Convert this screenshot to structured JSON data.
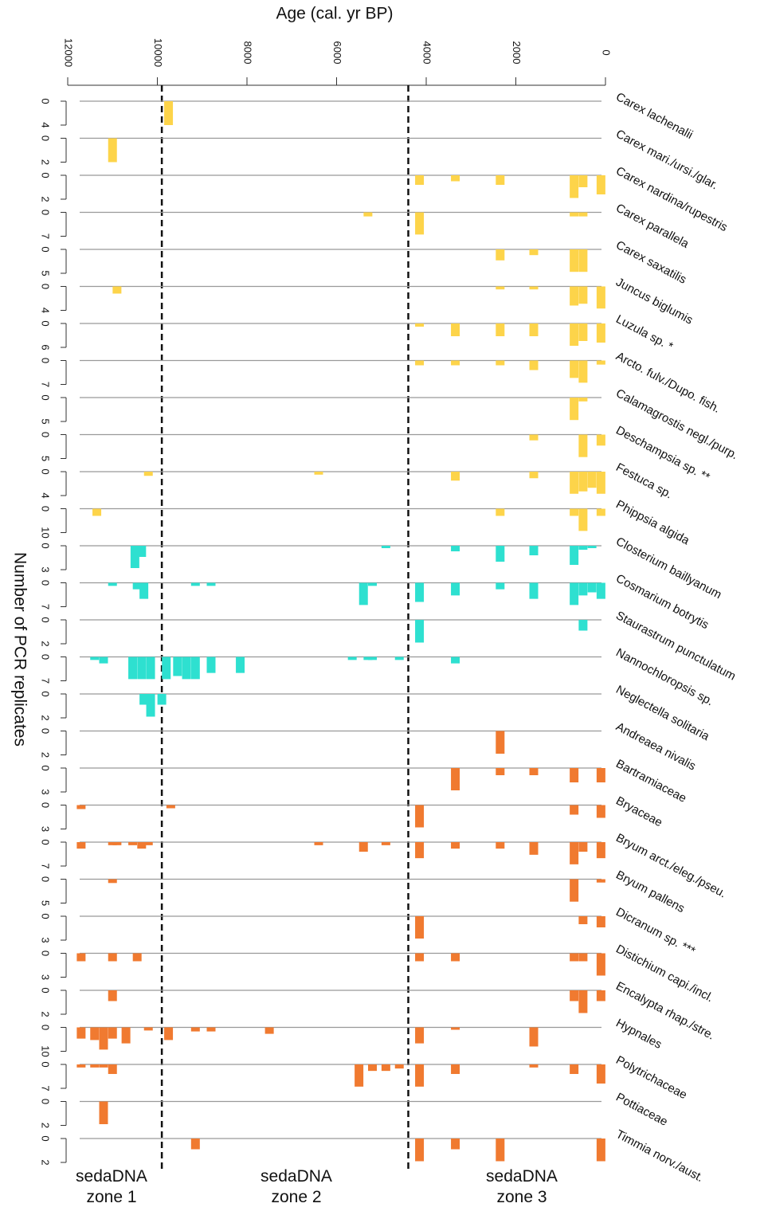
{
  "chart_data": {
    "type": "stratigraphic-bar",
    "xlabel": "Age (cal. yr BP)",
    "ylabel": "Number of PCR replicates",
    "xlim": [
      12000,
      0
    ],
    "xticks": [
      12000,
      10000,
      8000,
      6000,
      4000,
      2000,
      0
    ],
    "zone_boundaries": [
      9900,
      4400
    ],
    "zones": [
      "sedaDNA zone 1",
      "sedaDNA zone 2",
      "sedaDNA zone 3"
    ],
    "grid": true,
    "series": [
      {
        "name": "Carex lachenalii",
        "color": "#fdd44a",
        "yticks": [
          0,
          4
        ],
        "x": [
          9750
        ],
        "values": [
          4
        ]
      },
      {
        "name": "Carex mari./ursi./glar.",
        "color": "#fdd44a",
        "yticks": [
          0,
          2
        ],
        "x": [
          11000
        ],
        "values": [
          2
        ]
      },
      {
        "name": "Carex nardina/rupestris",
        "color": "#fdd44a",
        "yticks": [
          0,
          2
        ],
        "x": [
          4150,
          3350,
          2350,
          700,
          500,
          100
        ],
        "values": [
          0.8,
          0.5,
          0.8,
          1.9,
          1,
          1.6
        ]
      },
      {
        "name": "Carex parallela",
        "color": "#fdd44a",
        "yticks": [
          0,
          7
        ],
        "x": [
          5300,
          4150,
          700,
          500
        ],
        "values": [
          1.2,
          6.5,
          1.2,
          1.2
        ]
      },
      {
        "name": "Carex saxatilis",
        "color": "#fdd44a",
        "yticks": [
          0,
          5
        ],
        "x": [
          2350,
          1600,
          700,
          500
        ],
        "values": [
          2.3,
          1.2,
          4.7,
          4.7
        ]
      },
      {
        "name": "Juncus biglumis",
        "color": "#fdd44a",
        "yticks": [
          0,
          4
        ],
        "x": [
          10900,
          2350,
          1600,
          700,
          500,
          100
        ],
        "values": [
          1.2,
          0.5,
          0.5,
          3.2,
          2.9,
          3.7
        ]
      },
      {
        "name": "Luzula sp. *",
        "color": "#fdd44a",
        "yticks": [
          0,
          6
        ],
        "x": [
          4150,
          3350,
          2350,
          1600,
          700,
          500,
          100
        ],
        "values": [
          0.8,
          3.2,
          3.2,
          3.2,
          5.6,
          4.4,
          4.8
        ]
      },
      {
        "name": "Arcto. fulv./Dupo. fish.",
        "color": "#fdd44a",
        "yticks": [
          0,
          7
        ],
        "x": [
          4150,
          3350,
          2350,
          1600,
          700,
          500,
          100
        ],
        "values": [
          1.4,
          1.4,
          1.4,
          2.8,
          5.1,
          6.5,
          1.2
        ]
      },
      {
        "name": "Calamagrostis negl./purp.",
        "color": "#fdd44a",
        "yticks": [
          0,
          5
        ],
        "x": [
          700,
          500
        ],
        "values": [
          4.7,
          0.8
        ]
      },
      {
        "name": "Deschampsia sp. **",
        "color": "#fdd44a",
        "yticks": [
          0,
          5
        ],
        "x": [
          1600,
          500,
          100
        ],
        "values": [
          1.2,
          4.7,
          2.3
        ]
      },
      {
        "name": "Festuca sp.",
        "color": "#fdd44a",
        "yticks": [
          0,
          4
        ],
        "x": [
          10200,
          6400,
          3350,
          1600,
          700,
          500,
          300,
          100
        ],
        "values": [
          0.7,
          0.5,
          1.5,
          1.1,
          3.7,
          3.3,
          2.7,
          3.7
        ]
      },
      {
        "name": "Phippsia algida",
        "color": "#fdd44a",
        "yticks": [
          0,
          10
        ],
        "x": [
          11350,
          2350,
          700,
          500,
          100
        ],
        "values": [
          3,
          3,
          3,
          9.3,
          3
        ]
      },
      {
        "name": "Closterium baillyanum",
        "color": "#2ee0d0",
        "yticks": [
          0,
          3
        ],
        "x": [
          10500,
          10350,
          4900,
          3350,
          2350,
          1600,
          700,
          500,
          300
        ],
        "values": [
          2.8,
          1.4,
          0.3,
          0.7,
          2,
          1.2,
          2.4,
          0.5,
          0.3
        ]
      },
      {
        "name": "Cosmarium botrytis",
        "color": "#2ee0d0",
        "yticks": [
          0,
          7
        ],
        "x": [
          11000,
          10450,
          10300,
          9150,
          8800,
          5400,
          5200,
          4150,
          3350,
          2350,
          1600,
          700,
          500,
          300,
          100
        ],
        "values": [
          0.9,
          1.9,
          4.7,
          0.9,
          0.9,
          6.5,
          0.9,
          5.6,
          3.7,
          1.9,
          4.7,
          6.5,
          3.7,
          2.8,
          4.7
        ]
      },
      {
        "name": "Staurastrum punctulatum",
        "color": "#2ee0d0",
        "yticks": [
          0,
          2
        ],
        "x": [
          4150,
          500
        ],
        "values": [
          1.9,
          0.9
        ]
      },
      {
        "name": "Nannochloropsis sp.",
        "color": "#2ee0d0",
        "yticks": [
          0,
          7
        ],
        "x": [
          11400,
          11200,
          10550,
          10350,
          10150,
          9800,
          9550,
          9350,
          9150,
          8800,
          8150,
          5650,
          5300,
          5200,
          4600,
          3350
        ],
        "values": [
          0.9,
          1.9,
          6.5,
          6.5,
          6.5,
          6.5,
          5.6,
          6.5,
          6.5,
          4.7,
          4.7,
          0.9,
          0.9,
          0.9,
          0.9,
          1.9
        ]
      },
      {
        "name": "Neglectella solitaria",
        "color": "#2ee0d0",
        "yticks": [
          0,
          2
        ],
        "x": [
          10300,
          10150,
          9900
        ],
        "values": [
          0.9,
          1.9,
          0.9
        ]
      },
      {
        "name": "Andreaea nivalis",
        "color": "#f07a30",
        "yticks": [
          0,
          2
        ],
        "x": [
          2350
        ],
        "values": [
          1.9
        ]
      },
      {
        "name": "Bartramiaceae",
        "color": "#f07a30",
        "yticks": [
          0,
          3
        ],
        "x": [
          3350,
          2350,
          1600,
          700,
          100
        ],
        "values": [
          2.8,
          0.9,
          0.9,
          1.8,
          1.8
        ]
      },
      {
        "name": "Bryaceae",
        "color": "#f07a30",
        "yticks": [
          0,
          3
        ],
        "x": [
          11700,
          9700,
          4150,
          700,
          100
        ],
        "values": [
          0.5,
          0.4,
          2.8,
          1.2,
          1.6
        ]
      },
      {
        "name": "Bryum arct./eleg./pseu.",
        "color": "#f07a30",
        "yticks": [
          0,
          7
        ],
        "x": [
          11700,
          11000,
          10900,
          10550,
          10350,
          10200,
          6400,
          5400,
          4900,
          4150,
          3350,
          2350,
          1600,
          700,
          500,
          100
        ],
        "values": [
          1.9,
          0.9,
          0.9,
          0.9,
          1.9,
          0.9,
          0.9,
          2.8,
          0.9,
          4.7,
          1.9,
          1.9,
          3.7,
          6.5,
          2.8,
          4.7
        ]
      },
      {
        "name": "Bryum pallens",
        "color": "#f07a30",
        "yticks": [
          0,
          5
        ],
        "x": [
          11000,
          700,
          100
        ],
        "values": [
          0.8,
          4.7,
          0.7
        ]
      },
      {
        "name": "Dicranum sp. ***",
        "color": "#f07a30",
        "yticks": [
          0,
          3
        ],
        "x": [
          4150,
          500,
          100
        ],
        "values": [
          2.8,
          1,
          1.4
        ]
      },
      {
        "name": "Distichium capi./incl.",
        "color": "#f07a30",
        "yticks": [
          0,
          3
        ],
        "x": [
          11700,
          11000,
          10450,
          4150,
          3350,
          700,
          500,
          100
        ],
        "values": [
          1,
          1,
          1,
          1,
          1,
          1,
          1,
          2.8
        ]
      },
      {
        "name": "Encalypta rhap./stre.",
        "color": "#f07a30",
        "yticks": [
          0,
          2
        ],
        "x": [
          11000,
          700,
          500,
          100
        ],
        "values": [
          0.9,
          0.9,
          1.9,
          0.9
        ]
      },
      {
        "name": "Hypnales",
        "color": "#f07a30",
        "yticks": [
          0,
          10
        ],
        "x": [
          11700,
          11400,
          11200,
          11000,
          10700,
          10200,
          9750,
          9150,
          8800,
          7500,
          4150,
          3350,
          1600
        ],
        "values": [
          4.7,
          5.3,
          9.3,
          4.7,
          6.7,
          1.3,
          5.3,
          1.7,
          1.7,
          2.7,
          6.7,
          1,
          8
        ]
      },
      {
        "name": "Polytrichaceae",
        "color": "#f07a30",
        "yticks": [
          0,
          7
        ],
        "x": [
          11700,
          11400,
          11200,
          11000,
          5500,
          5200,
          4900,
          4600,
          4150,
          3350,
          1600,
          700,
          100
        ],
        "values": [
          0.9,
          0.9,
          0.9,
          2.8,
          6.5,
          1.9,
          1.9,
          1.2,
          6.5,
          2.8,
          0.9,
          2.8,
          5.6
        ]
      },
      {
        "name": "Pottiaceae",
        "color": "#f07a30",
        "yticks": [
          0,
          2
        ],
        "x": [
          11200
        ],
        "values": [
          1.9
        ]
      },
      {
        "name": "Timmia norv./aust.",
        "color": "#f07a30",
        "yticks": [
          0,
          2
        ],
        "x": [
          9150,
          4150,
          3350,
          2350,
          100
        ],
        "values": [
          0.9,
          1.9,
          0.9,
          1.9,
          1.9
        ]
      }
    ]
  }
}
